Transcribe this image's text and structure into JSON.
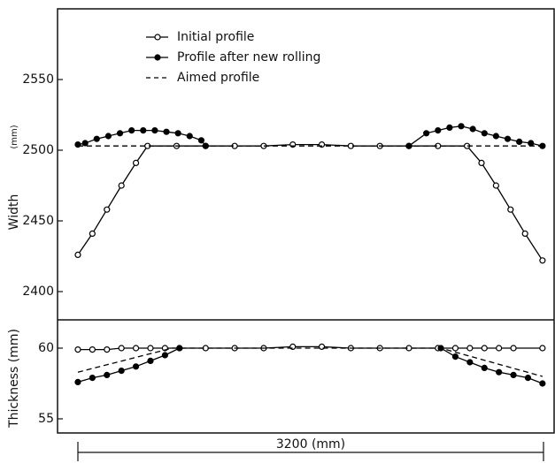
{
  "chart_data": [
    {
      "type": "line",
      "ylabel": "Width",
      "yunit": "(mm)",
      "xlim": [
        -140,
        3280
      ],
      "ylim": [
        2380,
        2600
      ],
      "yticks": [
        2400,
        2450,
        2500,
        2550
      ],
      "series": [
        {
          "name": "Initial profile",
          "marker": "open",
          "dash": false,
          "color": "#000000",
          "x": [
            0,
            100,
            200,
            300,
            400,
            480,
            680,
            880,
            1080,
            1280,
            1480,
            1680,
            1880,
            2080,
            2280,
            2480,
            2680,
            2780,
            2880,
            2980,
            3080,
            3200
          ],
          "values": [
            2426,
            2441,
            2458,
            2475,
            2491,
            2503,
            2503,
            2503,
            2503,
            2503,
            2504,
            2504,
            2503,
            2503,
            2503,
            2503,
            2503,
            2491,
            2475,
            2458,
            2441,
            2422
          ]
        },
        {
          "name": "Profile after new rolling",
          "marker": "filled",
          "dash": false,
          "color": "#000000",
          "x": [
            0,
            50,
            130,
            210,
            290,
            370,
            450,
            530,
            610,
            690,
            770,
            850,
            880,
            1600,
            2280,
            2400,
            2480,
            2560,
            2640,
            2720,
            2800,
            2880,
            2960,
            3040,
            3120,
            3200
          ],
          "values": [
            2504,
            2505,
            2508,
            2510,
            2512,
            2514,
            2514,
            2514,
            2513,
            2512,
            2510,
            2507,
            2503,
            null,
            2503,
            2512,
            2514,
            2516,
            2517,
            2515,
            2512,
            2510,
            2508,
            2506,
            2505,
            2503
          ]
        },
        {
          "name": "Aimed profile",
          "marker": "none",
          "dash": true,
          "color": "#000000",
          "x": [
            0,
            3200
          ],
          "values": [
            2503,
            2503
          ]
        }
      ]
    },
    {
      "type": "line",
      "ylabel": "Thickness (mm)",
      "xlim": [
        -140,
        3280
      ],
      "ylim": [
        54,
        62
      ],
      "yticks": [
        55,
        60
      ],
      "annotation": "3200   (mm)",
      "series": [
        {
          "marker": "open",
          "dash": false,
          "color": "#000000",
          "x": [
            0,
            100,
            200,
            300,
            400,
            500,
            600,
            700,
            880,
            1080,
            1280,
            1480,
            1680,
            1880,
            2080,
            2280,
            2480,
            2600,
            2700,
            2800,
            2900,
            3000,
            3200
          ],
          "values": [
            59.9,
            59.9,
            59.9,
            60,
            60,
            60,
            60,
            60,
            60,
            60,
            60,
            60.1,
            60.1,
            60,
            60,
            60,
            60,
            60,
            60,
            60,
            60,
            60,
            60
          ]
        },
        {
          "marker": "filled",
          "dash": false,
          "color": "#000000",
          "x": [
            0,
            100,
            200,
            300,
            400,
            500,
            600,
            700,
            1600,
            2500,
            2600,
            2700,
            2800,
            2900,
            3000,
            3100,
            3200
          ],
          "values": [
            57.6,
            57.9,
            58.1,
            58.4,
            58.7,
            59.1,
            59.5,
            60,
            null,
            60,
            59.4,
            59,
            58.6,
            58.3,
            58.1,
            57.9,
            57.5
          ]
        },
        {
          "marker": "none",
          "dash": true,
          "color": "#000000",
          "x": [
            0,
            650,
            2500,
            3200
          ],
          "values": [
            58.3,
            60,
            60,
            58
          ]
        }
      ]
    }
  ]
}
